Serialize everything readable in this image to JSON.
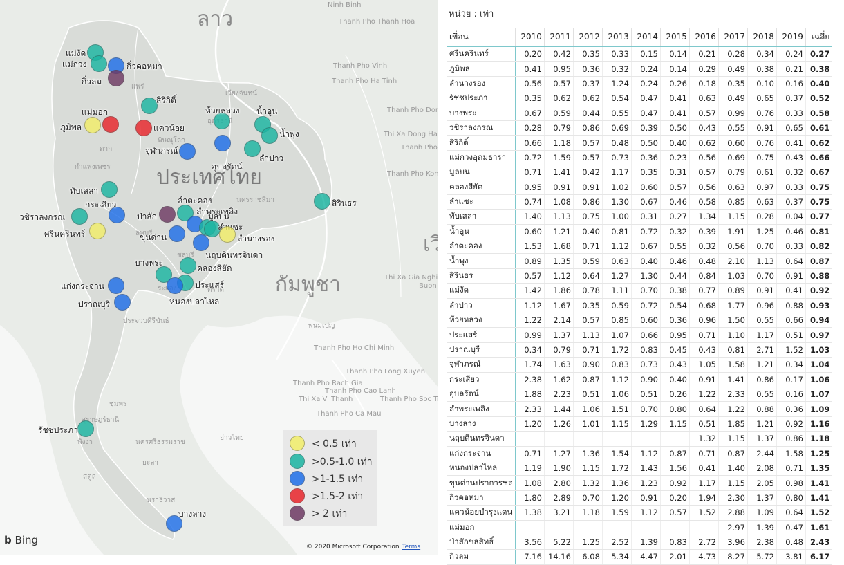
{
  "map": {
    "country_labels": [
      "ลาว",
      "ประเทศไทย",
      "กัมพูชา",
      "เวี"
    ],
    "legend": [
      {
        "label": "< 0.5 เท่า",
        "color": "#f2ee6a"
      },
      {
        "label": ">0.5-1.0 เท่า",
        "color": "#1bb5a2"
      },
      {
        "label": ">1-1.5 เท่า",
        "color": "#1f6fe8"
      },
      {
        "label": ">1.5-2 เท่า",
        "color": "#e8262b"
      },
      {
        "label": "> 2 เท่า",
        "color": "#6e3a64"
      }
    ],
    "dams": [
      {
        "name": "แม่งัด",
        "cls": 1
      },
      {
        "name": "แม่กวง",
        "cls": 1
      },
      {
        "name": "กิ่วคอหมา",
        "cls": 2
      },
      {
        "name": "กิ่วลม",
        "cls": 4
      },
      {
        "name": "สิริกิติ์",
        "cls": 1
      },
      {
        "name": "แม่มอก",
        "cls": 3
      },
      {
        "name": "ภูมิพล",
        "cls": 0
      },
      {
        "name": "แควน้อย",
        "cls": 3
      },
      {
        "name": "ห้วยหลวง",
        "cls": 1
      },
      {
        "name": "น้ำอูน",
        "cls": 1
      },
      {
        "name": "น้ำพุง",
        "cls": 1
      },
      {
        "name": "อุบลรัตน์",
        "cls": 2
      },
      {
        "name": "จุฬาภรณ์",
        "cls": 2
      },
      {
        "name": "ลำปาว",
        "cls": 1
      },
      {
        "name": "ทับเสลา",
        "cls": 1
      },
      {
        "name": "สิรินธร",
        "cls": 1
      },
      {
        "name": "กระเสียว",
        "cls": 2
      },
      {
        "name": "วชิราลงกรณ",
        "cls": 1
      },
      {
        "name": "ศรีนครินทร์",
        "cls": 0
      },
      {
        "name": "ลำตะคอง",
        "cls": 1
      },
      {
        "name": "ลำพระเพลิง",
        "cls": 2
      },
      {
        "name": "ป่าสัก",
        "cls": 4
      },
      {
        "name": "มูลบน",
        "cls": 1
      },
      {
        "name": "ลำแซะ",
        "cls": 1
      },
      {
        "name": "ขุนด่าน",
        "cls": 2
      },
      {
        "name": "ลำนางรอง",
        "cls": 0
      },
      {
        "name": "นฤบดินทรจินดา",
        "cls": 2
      },
      {
        "name": "คลองสียัด",
        "cls": 1
      },
      {
        "name": "บางพระ",
        "cls": 1
      },
      {
        "name": "ประแสร์",
        "cls": 1
      },
      {
        "name": "หนองปลาไหล",
        "cls": 2
      },
      {
        "name": "แก่งกระจาน",
        "cls": 2
      },
      {
        "name": "ปราณบุรี",
        "cls": 2
      },
      {
        "name": "รัชชประภา",
        "cls": 1
      },
      {
        "name": "บางลาง",
        "cls": 2
      }
    ],
    "place_names": [
      "Ninh Binh",
      "Thanh Pho Thanh Hoa",
      "Thanh Pho Vinh",
      "Thanh Pho Ha Tinh",
      "Thanh Pho Dong Hoi",
      "Thi Xa Dong Ha",
      "Thanh Pho Hue",
      "Thanh Pho Kon Tum",
      "Thi Xa Gia Nghia",
      "Thanh Pho Ho Chi Minh",
      "Thanh Pho Long Xuyen",
      "Thanh Pho Rach Gia",
      "Thi Xa Vi Thanh",
      "Thanh Pho Soc Trang",
      "Thanh Pho Ca Mau",
      "Buon Ma",
      "Thanh Pho Cao Lanh",
      "อ่าวไทย",
      "พนมเปญ",
      "เวียงจันทน์",
      "อุดรธานี",
      "นครราชสีมา",
      "ประจวบคีรีขันธ์",
      "ชุมพร",
      "สุราษฎร์ธานี",
      "นครศรีธรรมราช",
      "พังงา",
      "สตูล",
      "ยะลา",
      "นราธิวาส",
      "แพร่",
      "พิษณุโลก",
      "ตาก",
      "กำแพงเพชร",
      "ลพบุรี",
      "ชลบุรี",
      "ระยอง",
      "ตราด"
    ],
    "bing": "Bing",
    "copyright": "© 2020 Microsoft Corporation",
    "terms": "Terms"
  },
  "table": {
    "unit": "หน่วย : เท่า",
    "headers": [
      "เขื่อน",
      "2010",
      "2011",
      "2012",
      "2013",
      "2014",
      "2015",
      "2016",
      "2017",
      "2018",
      "2019",
      "เฉลี่ย"
    ],
    "rows": [
      [
        "ศรีนครินทร์",
        "0.20",
        "0.42",
        "0.35",
        "0.33",
        "0.15",
        "0.14",
        "0.21",
        "0.28",
        "0.34",
        "0.24",
        "0.27"
      ],
      [
        "ภูมิพล",
        "0.41",
        "0.95",
        "0.36",
        "0.32",
        "0.24",
        "0.14",
        "0.29",
        "0.49",
        "0.38",
        "0.21",
        "0.38"
      ],
      [
        "ลำนางรอง",
        "0.56",
        "0.57",
        "0.37",
        "1.24",
        "0.24",
        "0.26",
        "0.18",
        "0.35",
        "0.10",
        "0.16",
        "0.40"
      ],
      [
        "รัชชประภา",
        "0.35",
        "0.62",
        "0.62",
        "0.54",
        "0.47",
        "0.41",
        "0.63",
        "0.49",
        "0.65",
        "0.37",
        "0.52"
      ],
      [
        "บางพระ",
        "0.67",
        "0.59",
        "0.44",
        "0.55",
        "0.47",
        "0.41",
        "0.57",
        "0.99",
        "0.76",
        "0.33",
        "0.58"
      ],
      [
        "วชิราลงกรณ",
        "0.28",
        "0.79",
        "0.86",
        "0.69",
        "0.39",
        "0.50",
        "0.43",
        "0.55",
        "0.91",
        "0.65",
        "0.61"
      ],
      [
        "สิริกิติ์",
        "0.66",
        "1.18",
        "0.57",
        "0.48",
        "0.50",
        "0.40",
        "0.62",
        "0.60",
        "0.76",
        "0.41",
        "0.62"
      ],
      [
        "แม่กวงอุดมธารา",
        "0.72",
        "1.59",
        "0.57",
        "0.73",
        "0.36",
        "0.23",
        "0.56",
        "0.69",
        "0.75",
        "0.43",
        "0.66"
      ],
      [
        "มูลบน",
        "0.71",
        "1.41",
        "0.42",
        "1.17",
        "0.35",
        "0.31",
        "0.57",
        "0.79",
        "0.61",
        "0.32",
        "0.67"
      ],
      [
        "คลองสียัด",
        "0.95",
        "0.91",
        "0.91",
        "1.02",
        "0.60",
        "0.57",
        "0.56",
        "0.63",
        "0.97",
        "0.33",
        "0.75"
      ],
      [
        "ลำแซะ",
        "0.74",
        "1.08",
        "0.86",
        "1.30",
        "0.67",
        "0.46",
        "0.58",
        "0.85",
        "0.63",
        "0.37",
        "0.75"
      ],
      [
        "ทับเสลา",
        "1.40",
        "1.13",
        "0.75",
        "1.00",
        "0.31",
        "0.27",
        "1.34",
        "1.15",
        "0.28",
        "0.04",
        "0.77"
      ],
      [
        "น้ำอูน",
        "0.60",
        "1.21",
        "0.40",
        "0.81",
        "0.72",
        "0.32",
        "0.39",
        "1.91",
        "1.25",
        "0.46",
        "0.81"
      ],
      [
        "ลำตะคอง",
        "1.53",
        "1.68",
        "0.71",
        "1.12",
        "0.67",
        "0.55",
        "0.32",
        "0.56",
        "0.70",
        "0.33",
        "0.82"
      ],
      [
        "น้ำพุง",
        "0.89",
        "1.35",
        "0.59",
        "0.63",
        "0.40",
        "0.46",
        "0.48",
        "2.10",
        "1.13",
        "0.64",
        "0.87"
      ],
      [
        "สิรินธร",
        "0.57",
        "1.12",
        "0.64",
        "1.27",
        "1.30",
        "0.44",
        "0.84",
        "1.03",
        "0.70",
        "0.91",
        "0.88"
      ],
      [
        "แม่งัด",
        "1.42",
        "1.86",
        "0.78",
        "1.11",
        "0.70",
        "0.38",
        "0.77",
        "0.89",
        "0.91",
        "0.41",
        "0.92"
      ],
      [
        "ลำปาว",
        "1.12",
        "1.67",
        "0.35",
        "0.59",
        "0.72",
        "0.54",
        "0.68",
        "1.77",
        "0.96",
        "0.88",
        "0.93"
      ],
      [
        "ห้วยหลวง",
        "1.22",
        "2.14",
        "0.57",
        "0.85",
        "0.60",
        "0.36",
        "0.96",
        "1.50",
        "0.55",
        "0.66",
        "0.94"
      ],
      [
        "ประแสร์",
        "0.99",
        "1.37",
        "1.13",
        "1.07",
        "0.66",
        "0.95",
        "0.71",
        "1.10",
        "1.17",
        "0.51",
        "0.97"
      ],
      [
        "ปราณบุรี",
        "0.34",
        "0.79",
        "0.71",
        "1.72",
        "0.83",
        "0.45",
        "0.43",
        "0.81",
        "2.71",
        "1.52",
        "1.03"
      ],
      [
        "จุฬาภรณ์",
        "1.74",
        "1.63",
        "0.90",
        "0.83",
        "0.73",
        "0.43",
        "1.05",
        "1.58",
        "1.21",
        "0.34",
        "1.04"
      ],
      [
        "กระเสียว",
        "2.38",
        "1.62",
        "0.87",
        "1.12",
        "0.90",
        "0.40",
        "0.91",
        "1.41",
        "0.86",
        "0.17",
        "1.06"
      ],
      [
        "อุบลรัตน์",
        "1.88",
        "2.23",
        "0.51",
        "1.06",
        "0.51",
        "0.26",
        "1.22",
        "2.33",
        "0.55",
        "0.16",
        "1.07"
      ],
      [
        "ลำพระเพลิง",
        "2.33",
        "1.44",
        "1.06",
        "1.51",
        "0.70",
        "0.80",
        "0.64",
        "1.22",
        "0.88",
        "0.36",
        "1.09"
      ],
      [
        "บางลาง",
        "1.20",
        "1.26",
        "1.01",
        "1.15",
        "1.29",
        "1.15",
        "0.51",
        "1.85",
        "1.21",
        "0.92",
        "1.16"
      ],
      [
        "นฤบดินทรจินดา",
        "",
        "",
        "",
        "",
        "",
        "",
        "1.32",
        "1.15",
        "1.37",
        "0.86",
        "1.18"
      ],
      [
        "แก่งกระจาน",
        "0.71",
        "1.27",
        "1.36",
        "1.54",
        "1.12",
        "0.87",
        "0.71",
        "0.87",
        "2.44",
        "1.58",
        "1.25"
      ],
      [
        "หนองปลาไหล",
        "1.19",
        "1.90",
        "1.15",
        "1.72",
        "1.43",
        "1.56",
        "0.41",
        "1.40",
        "2.08",
        "0.71",
        "1.35"
      ],
      [
        "ขุนด่านปราการชล",
        "1.08",
        "2.80",
        "1.32",
        "1.36",
        "1.23",
        "0.92",
        "1.17",
        "1.15",
        "2.05",
        "0.98",
        "1.41"
      ],
      [
        "กิ่วคอหมา",
        "1.80",
        "2.89",
        "0.70",
        "1.20",
        "0.91",
        "0.20",
        "1.94",
        "2.30",
        "1.37",
        "0.80",
        "1.41"
      ],
      [
        "แควน้อยบำรุงแดน",
        "1.38",
        "3.21",
        "1.18",
        "1.59",
        "1.12",
        "0.57",
        "1.52",
        "2.88",
        "1.09",
        "0.64",
        "1.52"
      ],
      [
        "แม่มอก",
        "",
        "",
        "",
        "",
        "",
        "",
        "",
        "2.97",
        "1.39",
        "0.47",
        "1.61"
      ],
      [
        "ป่าสักชลสิทธิ์",
        "3.56",
        "5.22",
        "1.25",
        "2.52",
        "1.39",
        "0.83",
        "2.72",
        "3.96",
        "2.38",
        "0.48",
        "2.43"
      ],
      [
        "กิ่วลม",
        "7.16",
        "14.16",
        "6.08",
        "5.34",
        "4.47",
        "2.01",
        "4.73",
        "8.27",
        "5.72",
        "3.81",
        "6.17"
      ]
    ]
  }
}
